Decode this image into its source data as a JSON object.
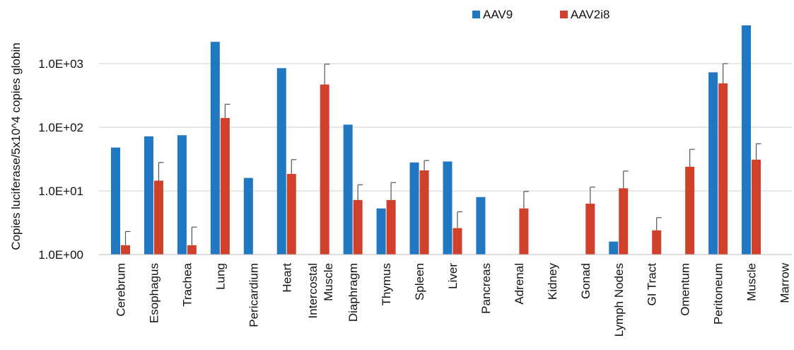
{
  "chart_data": {
    "type": "bar",
    "ylabel": "Copies luciferase/5x10^4 copies globin",
    "yscale": "log",
    "ylim": [
      1,
      5000
    ],
    "yticks": [
      {
        "value": 1,
        "label": "1.0E+00"
      },
      {
        "value": 10,
        "label": "1.0E+01"
      },
      {
        "value": 100,
        "label": "1.0E+02"
      },
      {
        "value": 1000,
        "label": "1.0E+03"
      }
    ],
    "grid": true,
    "legend_position": "top-right",
    "categories": [
      [
        "Cerebrum"
      ],
      [
        "Esophagus"
      ],
      [
        "Trachea"
      ],
      [
        "Lung"
      ],
      [
        "Pericardium"
      ],
      [
        "Heart"
      ],
      [
        "Intercostal",
        "Muscle"
      ],
      [
        "Diaphragm"
      ],
      [
        "Thymus"
      ],
      [
        "Spleen"
      ],
      [
        "Liver"
      ],
      [
        "Pancreas"
      ],
      [
        "Adrenal"
      ],
      [
        "Kidney"
      ],
      [
        "Gonad"
      ],
      [
        "Lymph Nodes"
      ],
      [
        "GI Tract"
      ],
      [
        "Omentum"
      ],
      [
        "Peritoneum"
      ],
      [
        "Muscle"
      ],
      [
        "Marrow"
      ]
    ],
    "series": [
      {
        "name": "AAV9",
        "color": "#1f78c1",
        "values": [
          48,
          72,
          75,
          2200,
          16,
          850,
          null,
          110,
          5.3,
          28,
          29,
          8,
          null,
          null,
          null,
          1.6,
          null,
          null,
          730,
          4000,
          null
        ],
        "error_upper": [
          null,
          null,
          null,
          null,
          null,
          null,
          null,
          null,
          null,
          null,
          null,
          null,
          null,
          null,
          null,
          null,
          null,
          null,
          null,
          null,
          null
        ]
      },
      {
        "name": "AAV2i8",
        "color": "#d0402a",
        "values": [
          1.4,
          14.5,
          1.4,
          140,
          null,
          18.5,
          470,
          7.2,
          7.2,
          21,
          2.6,
          null,
          5.3,
          null,
          6.3,
          11,
          2.4,
          24,
          490,
          31,
          null
        ],
        "error_upper": [
          2.3,
          28,
          2.7,
          230,
          null,
          31,
          980,
          12.5,
          13.5,
          30,
          4.7,
          null,
          9.8,
          null,
          11.5,
          20.5,
          3.8,
          45,
          1000,
          55,
          null
        ]
      }
    ]
  }
}
